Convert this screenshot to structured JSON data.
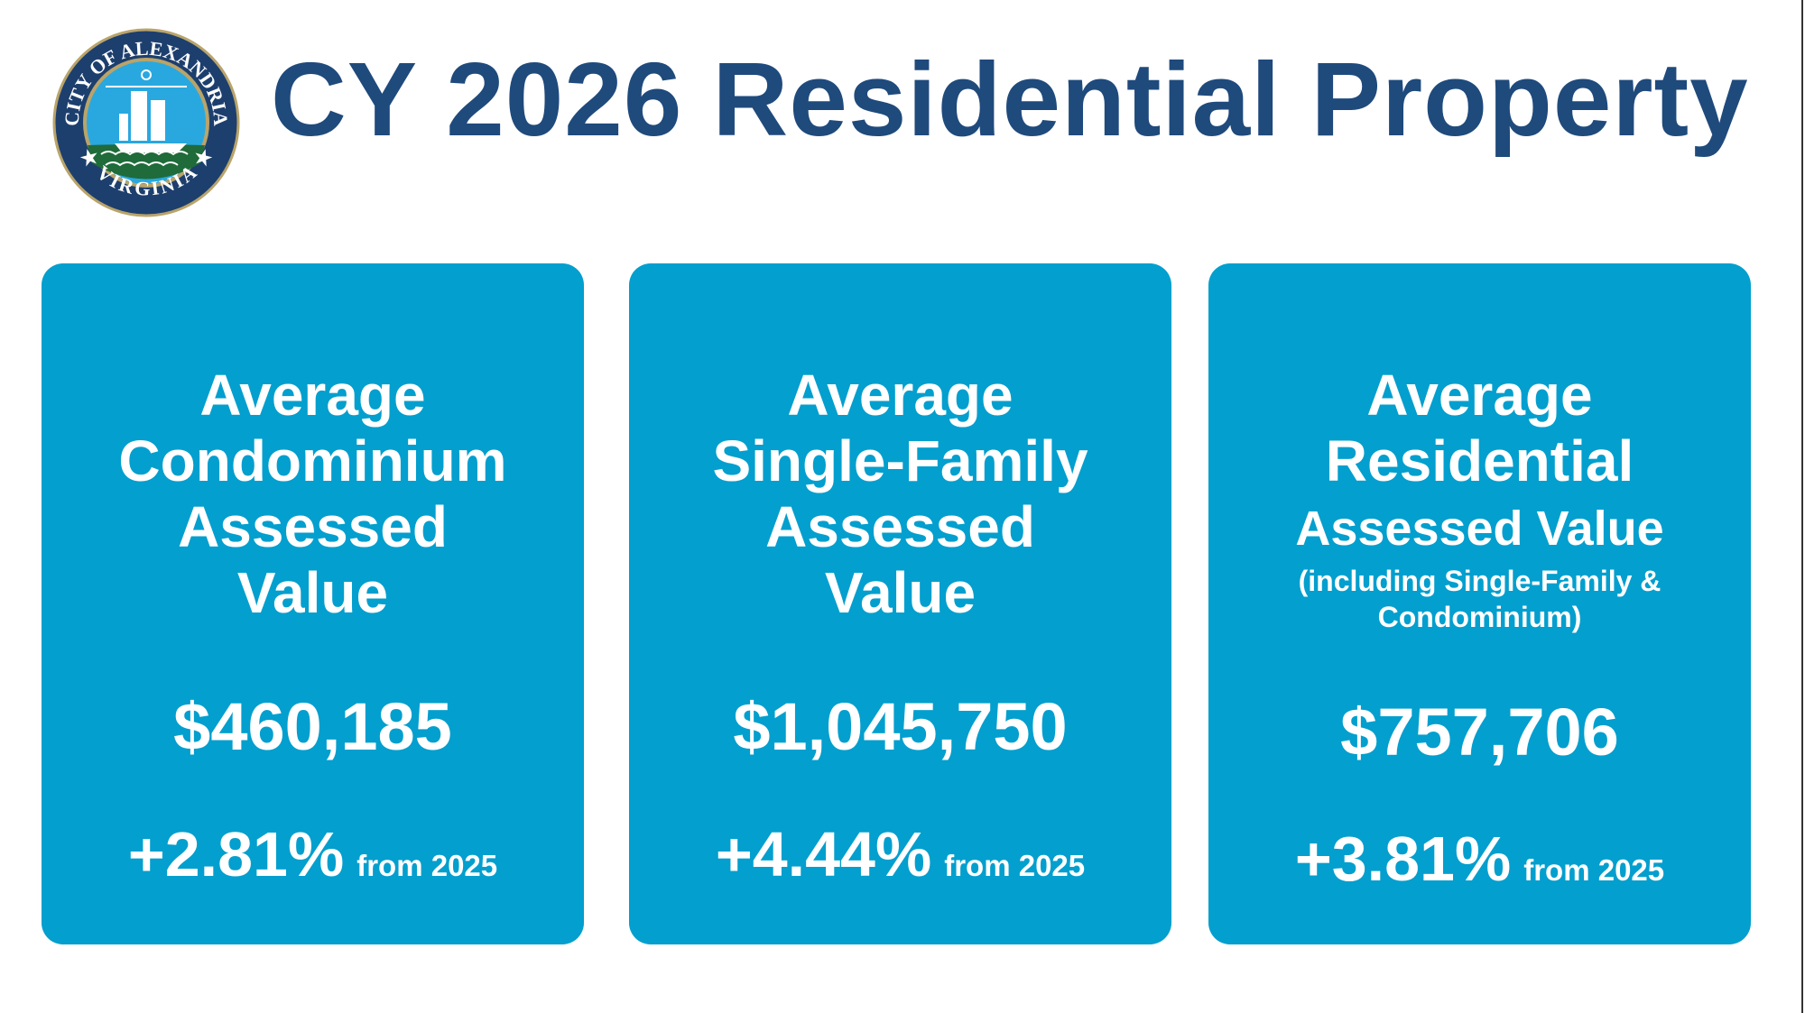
{
  "header": {
    "title": "CY 2026 Residential Property",
    "logo_text": "CITY OF ALEXANDRIA VIRGINIA"
  },
  "colors": {
    "title": "#1f4a7c",
    "card": "#039fce",
    "text_on_card": "#ffffff"
  },
  "cards": [
    {
      "lines": [
        "Average",
        "Condominium",
        "Assessed",
        "Value"
      ],
      "value": "$460,185",
      "change": "+2.81%",
      "change_suffix": "from 2025"
    },
    {
      "lines": [
        "Average",
        "Single-Family",
        "Assessed",
        "Value"
      ],
      "value": "$1,045,750",
      "change": "+4.44%",
      "change_suffix": "from 2025"
    },
    {
      "lines": [
        "Average",
        "Residential",
        "Assessed Value"
      ],
      "note_lines": [
        "(including Single-Family &",
        "Condominium)"
      ],
      "value": "$757,706",
      "change": "+3.81%",
      "change_suffix": "from 2025"
    }
  ]
}
